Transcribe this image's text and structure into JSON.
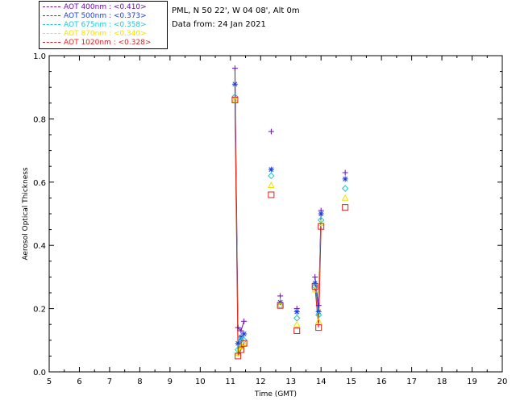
{
  "header": {
    "site": "PML, N 50 22', W 04 08', Alt 0m",
    "date": "Data from: 24 Jan 2021"
  },
  "legend": [
    {
      "label": "AOT  400nm : <0.410>",
      "color": "#6a0dad"
    },
    {
      "label": "AOT  500nm : <0.373>",
      "color": "#1f3fd6"
    },
    {
      "label": "AOT  675nm : <0.358>",
      "color": "#18c8d8"
    },
    {
      "label": "AOT  870nm : <0.340>",
      "color": "#f2e200"
    },
    {
      "label": "AOT 1020nm : <0.328>",
      "color": "#e02020"
    }
  ],
  "chart_data": {
    "type": "line",
    "xlabel": "Time (GMT)",
    "ylabel": "Aerosol Optical Thickness",
    "xlim": [
      5,
      20
    ],
    "ylim": [
      0,
      1
    ],
    "xticks": [
      5,
      6,
      7,
      8,
      9,
      10,
      11,
      12,
      13,
      14,
      15,
      16,
      17,
      18,
      19,
      20
    ],
    "yticks": [
      0.0,
      0.2,
      0.4,
      0.6,
      0.8,
      1.0
    ],
    "ytick_labels": [
      "0.0",
      "0.2",
      "0.4",
      "0.6",
      "0.8",
      "1.0"
    ],
    "x": [
      11.15,
      11.25,
      11.35,
      11.45,
      12.35,
      12.65,
      13.2,
      13.8,
      13.92,
      14.0,
      14.8
    ],
    "line_segments": [
      [
        0,
        3
      ],
      [
        7,
        9
      ]
    ],
    "series": [
      {
        "name": "AOT 400nm",
        "color": "#6a0dad",
        "marker": "plus",
        "values": [
          0.96,
          0.14,
          0.13,
          0.16,
          0.76,
          0.24,
          0.2,
          0.3,
          0.21,
          0.51,
          0.63
        ]
      },
      {
        "name": "AOT 500nm",
        "color": "#1f3fd6",
        "marker": "asterisk",
        "values": [
          0.91,
          0.09,
          0.11,
          0.12,
          0.64,
          0.22,
          0.19,
          0.28,
          0.19,
          0.5,
          0.61
        ]
      },
      {
        "name": "AOT 675nm",
        "color": "#18c8d8",
        "marker": "diamond",
        "values": [
          0.87,
          0.07,
          0.1,
          0.1,
          0.62,
          0.21,
          0.17,
          0.27,
          0.18,
          0.48,
          0.58
        ]
      },
      {
        "name": "AOT 870nm",
        "color": "#f2e200",
        "marker": "triangle",
        "values": [
          0.86,
          0.06,
          0.08,
          0.09,
          0.59,
          0.21,
          0.15,
          0.26,
          0.16,
          0.47,
          0.55
        ]
      },
      {
        "name": "AOT 1020nm",
        "color": "#e02020",
        "marker": "square",
        "values": [
          0.86,
          0.05,
          0.07,
          0.09,
          0.56,
          0.21,
          0.13,
          0.27,
          0.14,
          0.46,
          0.52
        ]
      }
    ]
  }
}
